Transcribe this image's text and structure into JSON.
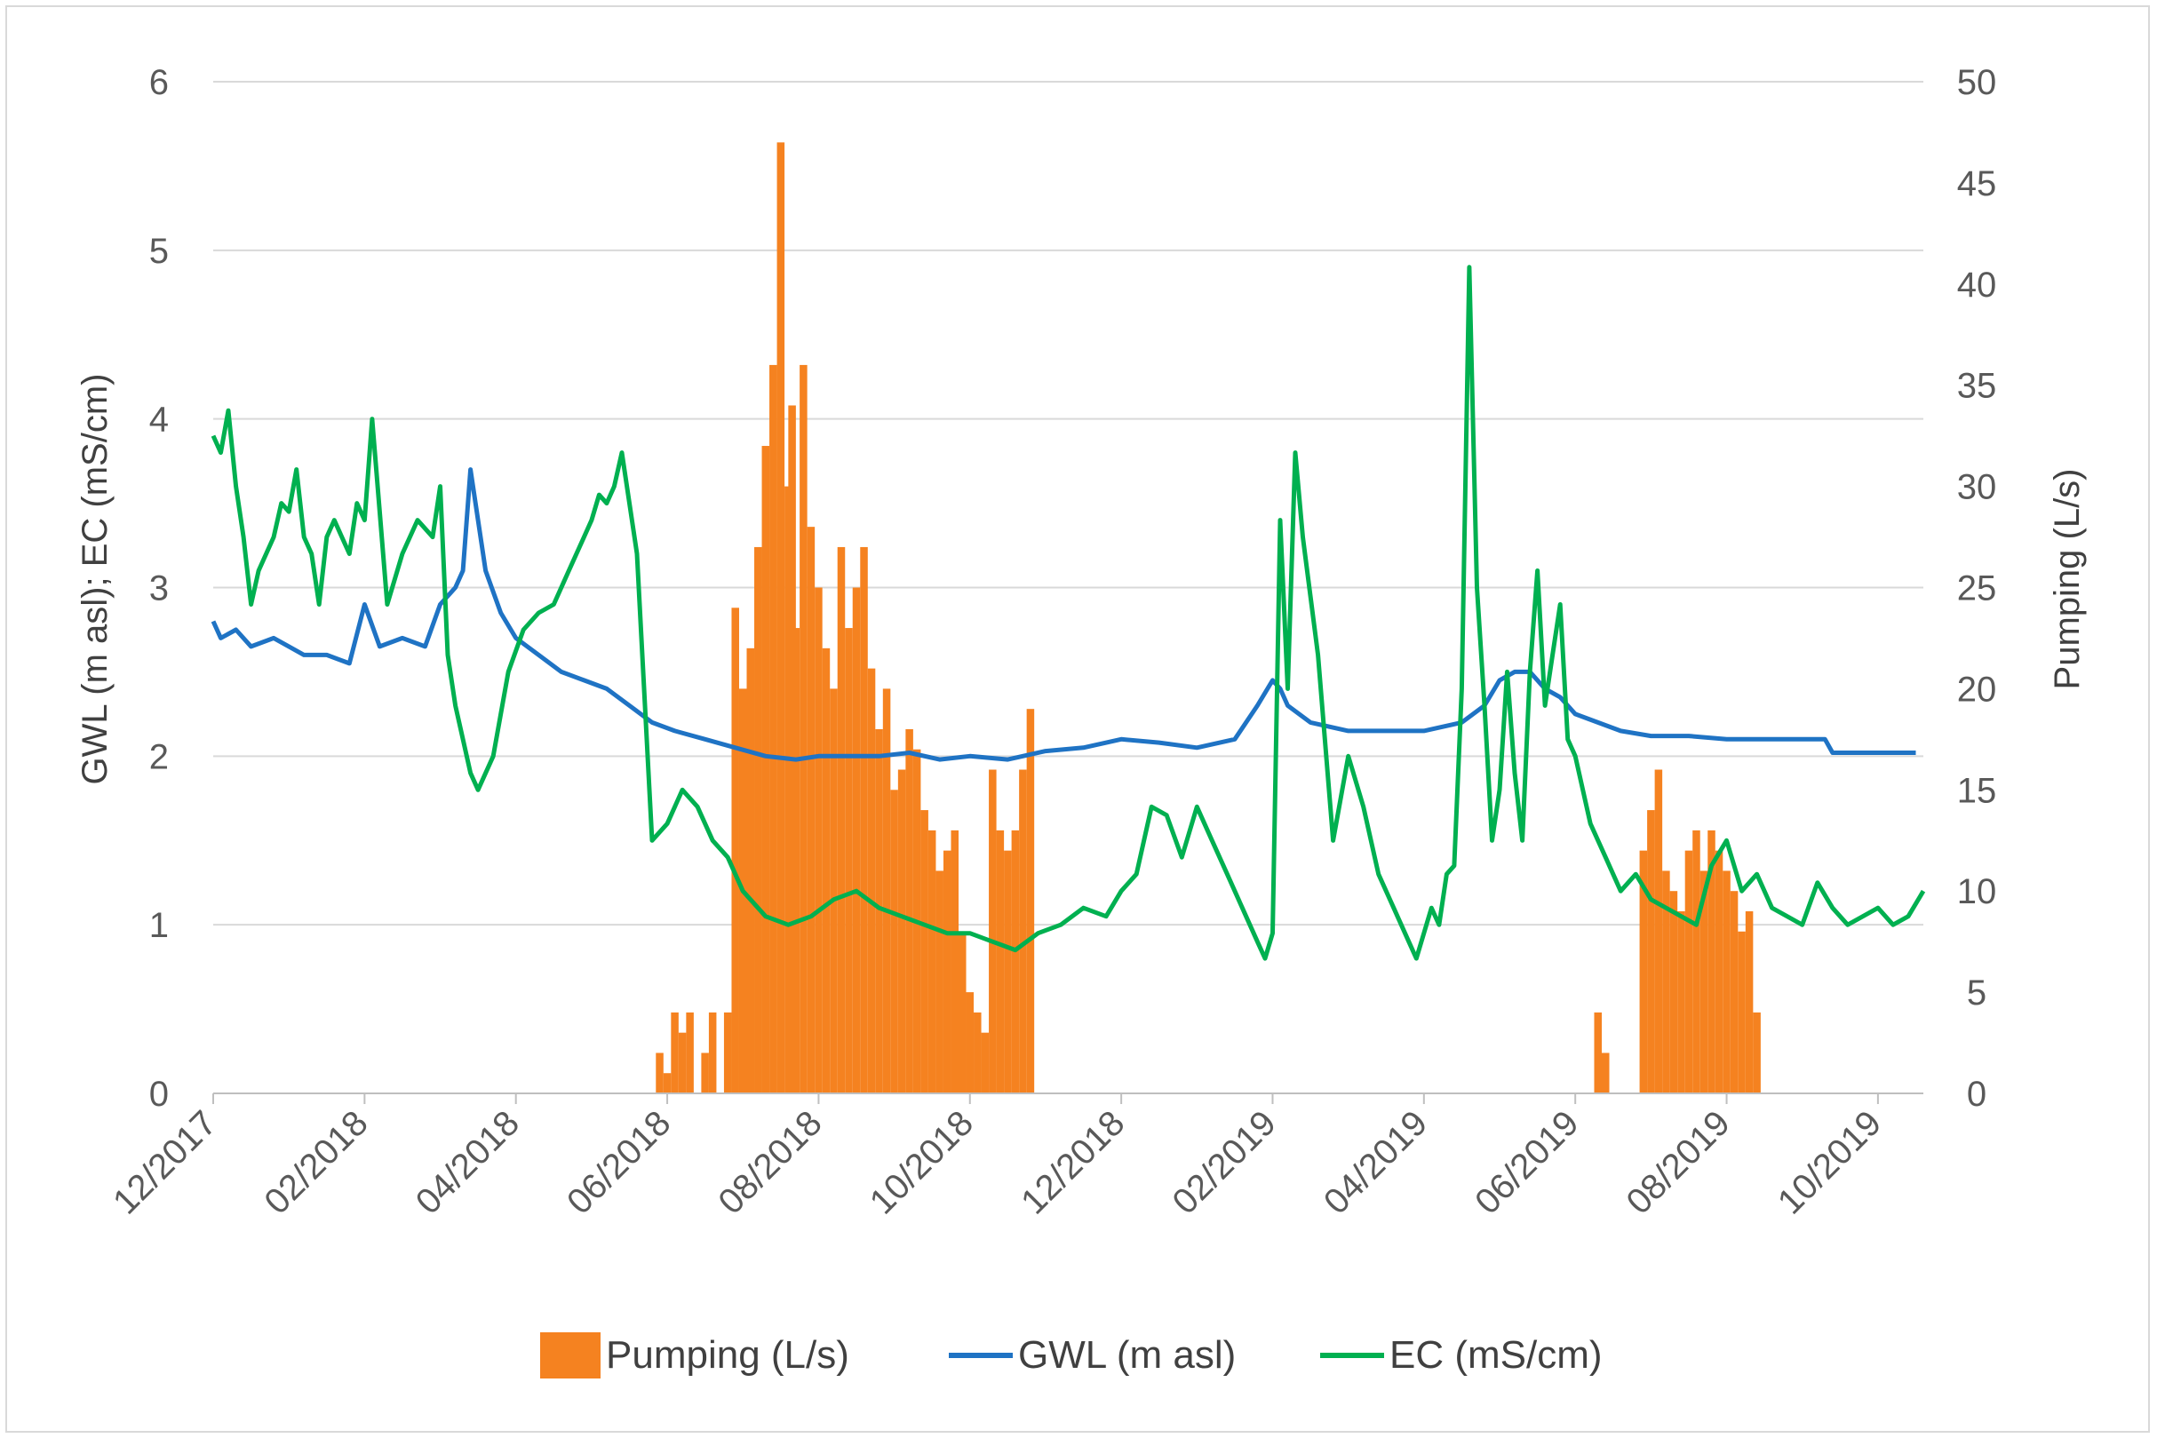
{
  "chart_data": {
    "type": "bar+line",
    "title": "",
    "y_left_label": "GWL (m asl); EC (mS/cm)",
    "y_right_label": "Pumping (L/s)",
    "y_left_ticks": [
      "0",
      "1",
      "2",
      "3",
      "4",
      "5",
      "6"
    ],
    "y_right_ticks": [
      "0",
      "5",
      "10",
      "15",
      "20",
      "25",
      "30",
      "35",
      "40",
      "45",
      "50"
    ],
    "ylim_left": [
      0,
      6
    ],
    "ylim_right": [
      0,
      50
    ],
    "x_ticks": [
      "12/2017",
      "02/2018",
      "04/2018",
      "06/2018",
      "08/2018",
      "10/2018",
      "12/2018",
      "02/2019",
      "04/2019",
      "06/2019",
      "08/2019",
      "10/2019"
    ],
    "x_range_months": [
      0,
      22.6
    ],
    "colors": {
      "pumping": "#f58220",
      "gwl": "#1f73c4",
      "ec": "#00b050",
      "grid": "#d9d9d9"
    },
    "legend": [
      {
        "name": "Pumping (L/s)",
        "kind": "bar"
      },
      {
        "name": "GWL (m asl)",
        "kind": "line"
      },
      {
        "name": "EC (mS/cm)",
        "kind": "line"
      }
    ],
    "series": [
      {
        "name": "Pumping (L/s)",
        "axis": "right",
        "kind": "bar",
        "x": [
          5.9,
          6.0,
          6.1,
          6.2,
          6.3,
          6.5,
          6.6,
          6.8,
          6.9,
          7.0,
          7.1,
          7.2,
          7.3,
          7.4,
          7.5,
          7.6,
          7.65,
          7.7,
          7.8,
          7.9,
          8.0,
          8.1,
          8.2,
          8.3,
          8.4,
          8.5,
          8.6,
          8.7,
          8.8,
          8.9,
          9.0,
          9.1,
          9.2,
          9.3,
          9.4,
          9.5,
          9.6,
          9.7,
          9.8,
          9.9,
          10.0,
          10.1,
          10.2,
          10.3,
          10.4,
          10.5,
          10.6,
          10.7,
          10.8,
          11.0,
          18.3,
          18.4,
          18.9,
          19.0,
          19.1,
          19.2,
          19.3,
          19.4,
          19.5,
          19.6,
          19.7,
          19.8,
          19.9,
          20.0,
          20.1,
          20.2,
          20.3,
          20.4
        ],
        "values": [
          2,
          1,
          4,
          3,
          4,
          2,
          4,
          4,
          24,
          20,
          22,
          27,
          32,
          36,
          47,
          30,
          34,
          23,
          36,
          28,
          25,
          22,
          20,
          27,
          23,
          25,
          27,
          21,
          18,
          20,
          15,
          16,
          18,
          17,
          14,
          13,
          11,
          12,
          13,
          8,
          5,
          4,
          3,
          16,
          13,
          12,
          13,
          16,
          19,
          0,
          4,
          2,
          12,
          14,
          16,
          11,
          10,
          9,
          12,
          13,
          11,
          13,
          12,
          11,
          10,
          8,
          9,
          4
        ]
      },
      {
        "name": "GWL (m asl)",
        "axis": "left",
        "kind": "line",
        "x": [
          0,
          0.1,
          0.3,
          0.5,
          0.8,
          1.0,
          1.2,
          1.5,
          1.8,
          2.0,
          2.2,
          2.5,
          2.8,
          3.0,
          3.2,
          3.3,
          3.4,
          3.5,
          3.6,
          3.8,
          4.0,
          4.3,
          4.6,
          4.9,
          5.2,
          5.5,
          5.8,
          6.1,
          6.5,
          6.9,
          7.3,
          7.7,
          8.0,
          8.4,
          8.8,
          9.2,
          9.6,
          10.0,
          10.5,
          11.0,
          11.5,
          12.0,
          12.5,
          13.0,
          13.5,
          13.8,
          14.0,
          14.1,
          14.2,
          14.5,
          15.0,
          15.5,
          16.0,
          16.5,
          16.8,
          17.0,
          17.2,
          17.4,
          17.6,
          17.8,
          18.0,
          18.3,
          18.6,
          19.0,
          19.5,
          20.0,
          20.5,
          21.0,
          21.3,
          21.4,
          21.5,
          21.8,
          22.0,
          22.5
        ],
        "values": [
          2.8,
          2.7,
          2.75,
          2.65,
          2.7,
          2.65,
          2.6,
          2.6,
          2.55,
          2.9,
          2.65,
          2.7,
          2.65,
          2.9,
          3.0,
          3.1,
          3.7,
          3.4,
          3.1,
          2.85,
          2.7,
          2.6,
          2.5,
          2.45,
          2.4,
          2.3,
          2.2,
          2.15,
          2.1,
          2.05,
          2.0,
          1.98,
          2.0,
          2.0,
          2.0,
          2.02,
          1.98,
          2.0,
          1.98,
          2.03,
          2.05,
          2.1,
          2.08,
          2.05,
          2.1,
          2.3,
          2.45,
          2.4,
          2.3,
          2.2,
          2.15,
          2.15,
          2.15,
          2.2,
          2.3,
          2.45,
          2.5,
          2.5,
          2.4,
          2.35,
          2.25,
          2.2,
          2.15,
          2.12,
          2.12,
          2.1,
          2.1,
          2.1,
          2.1,
          2.02,
          2.02,
          2.02,
          2.02,
          2.02
        ]
      },
      {
        "name": "EC (mS/cm)",
        "axis": "left",
        "kind": "line",
        "x": [
          0,
          0.1,
          0.2,
          0.3,
          0.4,
          0.5,
          0.6,
          0.8,
          0.9,
          1.0,
          1.1,
          1.2,
          1.3,
          1.4,
          1.5,
          1.6,
          1.7,
          1.8,
          1.9,
          2.0,
          2.1,
          2.3,
          2.5,
          2.7,
          2.9,
          3.0,
          3.1,
          3.2,
          3.3,
          3.4,
          3.5,
          3.7,
          3.9,
          4.1,
          4.3,
          4.5,
          4.7,
          4.9,
          5.0,
          5.1,
          5.2,
          5.3,
          5.4,
          5.6,
          5.8,
          6.0,
          6.2,
          6.4,
          6.6,
          6.8,
          7.0,
          7.3,
          7.6,
          7.9,
          8.2,
          8.5,
          8.8,
          9.1,
          9.4,
          9.7,
          10.0,
          10.3,
          10.6,
          10.9,
          11.2,
          11.5,
          11.8,
          12.0,
          12.2,
          12.4,
          12.6,
          12.8,
          13.0,
          13.2,
          13.4,
          13.6,
          13.7,
          13.8,
          13.9,
          14.0,
          14.1,
          14.2,
          14.3,
          14.4,
          14.6,
          14.8,
          15.0,
          15.2,
          15.4,
          15.6,
          15.8,
          15.9,
          16.0,
          16.1,
          16.2,
          16.3,
          16.4,
          16.5,
          16.6,
          16.7,
          16.8,
          16.9,
          17.0,
          17.1,
          17.2,
          17.3,
          17.4,
          17.5,
          17.6,
          17.7,
          17.8,
          17.9,
          18.0,
          18.2,
          18.4,
          18.6,
          18.8,
          19.0,
          19.2,
          19.4,
          19.6,
          19.8,
          20.0,
          20.2,
          20.4,
          20.6,
          20.8,
          21.0,
          21.2,
          21.4,
          21.6,
          21.8,
          22.0,
          22.2,
          22.4,
          22.6
        ],
        "values": [
          3.9,
          3.8,
          4.05,
          3.6,
          3.3,
          2.9,
          3.1,
          3.3,
          3.5,
          3.45,
          3.7,
          3.3,
          3.2,
          2.9,
          3.3,
          3.4,
          3.3,
          3.2,
          3.5,
          3.4,
          4.0,
          2.9,
          3.2,
          3.4,
          3.3,
          3.6,
          2.6,
          2.3,
          2.1,
          1.9,
          1.8,
          2.0,
          2.5,
          2.75,
          2.85,
          2.9,
          3.1,
          3.3,
          3.4,
          3.55,
          3.5,
          3.6,
          3.8,
          3.2,
          1.5,
          1.6,
          1.8,
          1.7,
          1.5,
          1.4,
          1.2,
          1.05,
          1.0,
          1.05,
          1.15,
          1.2,
          1.1,
          1.05,
          1.0,
          0.95,
          0.95,
          0.9,
          0.85,
          0.95,
          1.0,
          1.1,
          1.05,
          1.2,
          1.3,
          1.7,
          1.65,
          1.4,
          1.7,
          1.5,
          1.3,
          1.1,
          1.0,
          0.9,
          0.8,
          0.95,
          3.4,
          2.4,
          3.8,
          3.3,
          2.6,
          1.5,
          2.0,
          1.7,
          1.3,
          1.1,
          0.9,
          0.8,
          0.95,
          1.1,
          1.0,
          1.3,
          1.35,
          2.4,
          4.9,
          3.0,
          2.3,
          1.5,
          1.8,
          2.5,
          1.9,
          1.5,
          2.5,
          3.1,
          2.3,
          2.6,
          2.9,
          2.1,
          2.0,
          1.6,
          1.4,
          1.2,
          1.3,
          1.15,
          1.1,
          1.05,
          1.0,
          1.35,
          1.5,
          1.2,
          1.3,
          1.1,
          1.05,
          1.0,
          1.25,
          1.1,
          1.0,
          1.05,
          1.1,
          1.0,
          1.05,
          1.2
        ]
      }
    ]
  }
}
